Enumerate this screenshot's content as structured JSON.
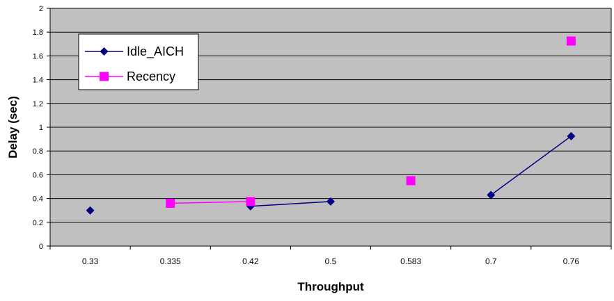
{
  "chart_data": {
    "type": "line",
    "xlabel": "Throughput",
    "ylabel": "Delay (sec)",
    "categories": [
      "0.33",
      "0.335",
      "0.42",
      "0.5",
      "0.583",
      "0.7",
      "0.76"
    ],
    "ylim": [
      0,
      2
    ],
    "yticks": [
      "0",
      "0.2",
      "0.4",
      "0.6",
      "0.8",
      "1",
      "1.2",
      "1.4",
      "1.6",
      "1.8",
      "2"
    ],
    "grid": true,
    "legend_position": "top-left",
    "series": [
      {
        "name": "Idle_AICH",
        "color": "#000080",
        "marker": "diamond",
        "values": [
          0.3,
          null,
          0.335,
          0.375,
          null,
          0.43,
          0.925
        ]
      },
      {
        "name": "Recency",
        "color": "#ff00ff",
        "marker": "square",
        "values": [
          null,
          0.36,
          0.375,
          null,
          0.55,
          null,
          1.725
        ]
      }
    ]
  }
}
